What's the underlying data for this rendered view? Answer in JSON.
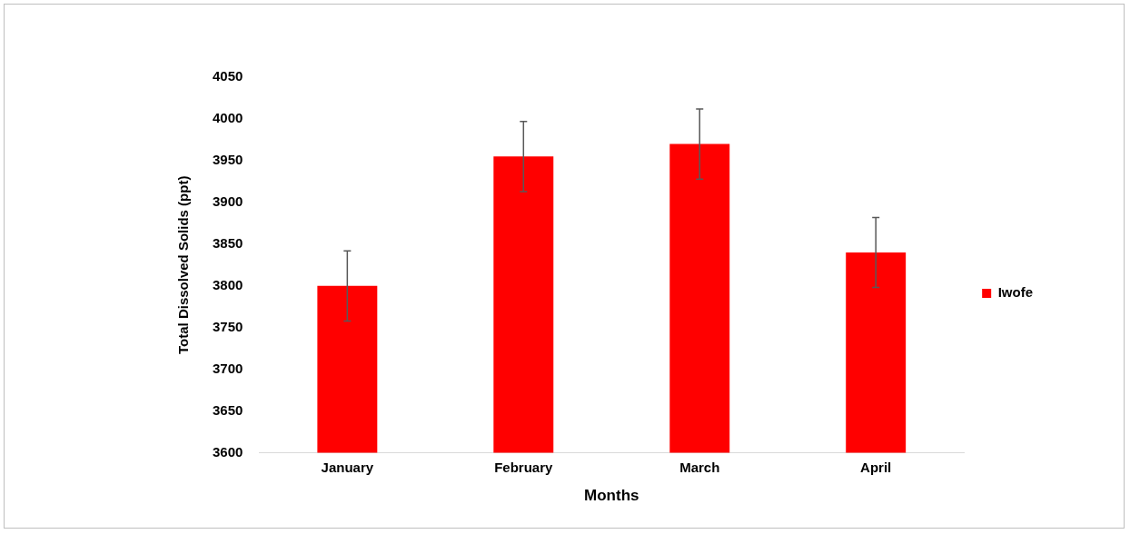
{
  "chart_data": {
    "type": "bar",
    "xlabel": "Months",
    "ylabel": "Total Dissolved Solids (ppt)",
    "categories": [
      "January",
      "February",
      "March",
      "April"
    ],
    "series": [
      {
        "name": "Iwofe",
        "color": "#ff0000",
        "values": [
          3800,
          3955,
          3970,
          3840
        ],
        "errors": [
          42,
          42,
          42,
          42
        ]
      }
    ],
    "ylim": [
      3600,
      4050
    ],
    "yticks": [
      3600,
      3650,
      3700,
      3750,
      3800,
      3850,
      3900,
      3950,
      4000,
      4050
    ],
    "grid": false,
    "legend": "right"
  }
}
